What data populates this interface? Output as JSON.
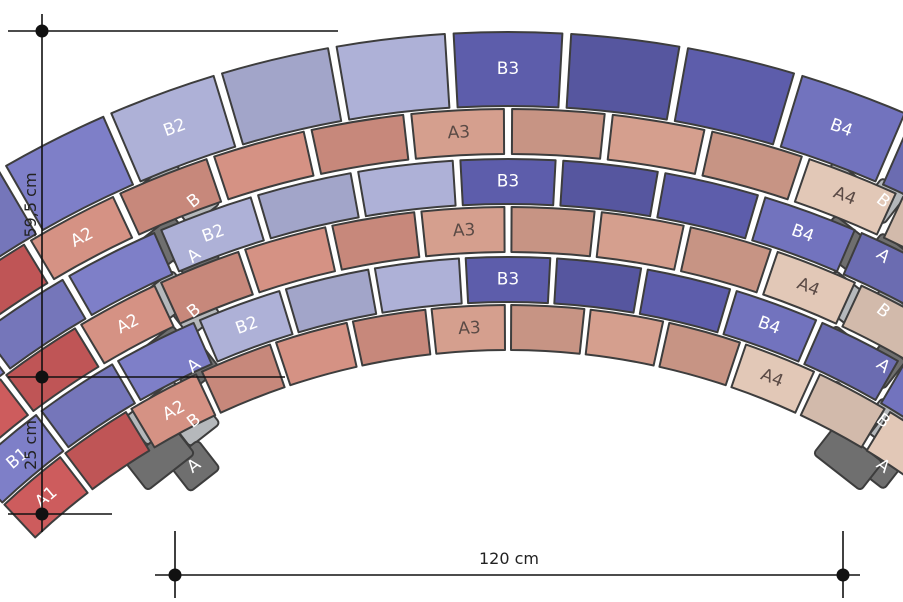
{
  "dimensions": {
    "height_top": "59,5 cm",
    "height_bottom": "25 cm",
    "width": "120 cm"
  },
  "colors": {
    "A1": "#c7595a",
    "A2": "#cf8e80",
    "A3": "#cf9a8a",
    "A4": "#dbc2b2",
    "B1": "#7a7bc2",
    "B2": "#a9acd1",
    "B3": "#5a5aa6",
    "B4": "#6f70b8",
    "A_side": "#6f6f6f",
    "B_side": "#b5b8bb"
  },
  "rings": [
    {
      "segments": [
        {
          "label": "A1",
          "count": 2
        },
        {
          "label": "A2",
          "count": 4
        },
        {
          "label": "A3",
          "count": 4
        },
        {
          "label": "A4",
          "count": 4
        }
      ]
    },
    {
      "segments": [
        {
          "label": "B1",
          "count": 3
        },
        {
          "label": "B2",
          "count": 3
        },
        {
          "label": "B3",
          "count": 3
        },
        {
          "label": "B4",
          "count": 4
        }
      ]
    }
  ],
  "side_stones": [
    "A",
    "B"
  ]
}
